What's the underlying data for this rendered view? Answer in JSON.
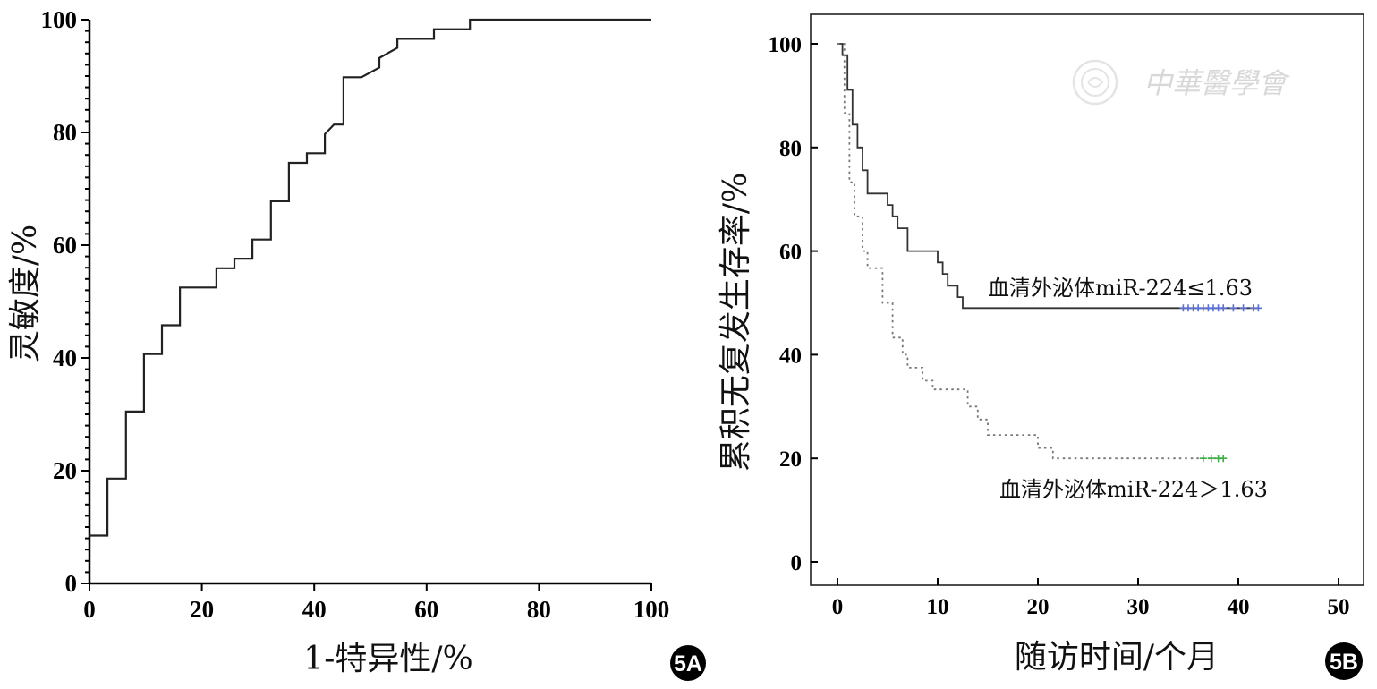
{
  "chart_data": [
    {
      "panel_label": "5A",
      "type": "line",
      "xlabel": "1-特异性/%",
      "ylabel": "灵敏度/%",
      "xlim": [
        0,
        100
      ],
      "ylim": [
        0,
        100
      ],
      "xticks": [
        "0",
        "20",
        "40",
        "60",
        "80",
        "100"
      ],
      "yticks": [
        "0",
        "20",
        "40",
        "60",
        "80",
        "100"
      ],
      "series": [
        {
          "step": true,
          "x": [
            0,
            3.2,
            3.2,
            6.5,
            6.5,
            9.7,
            9.7,
            12.9,
            12.9,
            16.1,
            16.1,
            22.6,
            22.6,
            25.8,
            25.8,
            29.0,
            29.0,
            32.3,
            32.3,
            35.5,
            35.5,
            38.7,
            38.7,
            41.9,
            41.9,
            43.5,
            45.2,
            45.2,
            48.4,
            51.6,
            51.6,
            54.8,
            54.8,
            61.3,
            61.3,
            67.7,
            67.7,
            100
          ],
          "y": [
            8.5,
            8.5,
            18.6,
            18.6,
            30.5,
            30.5,
            40.7,
            40.7,
            45.8,
            45.8,
            52.5,
            52.5,
            55.9,
            55.9,
            57.6,
            57.6,
            61.0,
            61.0,
            67.8,
            67.8,
            74.6,
            74.6,
            76.3,
            76.3,
            79.7,
            81.4,
            81.4,
            89.8,
            89.8,
            91.5,
            93.2,
            95.0,
            96.6,
            96.6,
            98.3,
            98.3,
            100,
            100
          ]
        }
      ]
    },
    {
      "panel_label": "5B",
      "type": "line",
      "xlabel": "随访时间/个月",
      "ylabel": "累积无复发生存率/%",
      "xlim": [
        0,
        50
      ],
      "ylim": [
        0,
        100
      ],
      "xticks": [
        "0",
        "10",
        "20",
        "30",
        "40",
        "50"
      ],
      "yticks": [
        "0",
        "20",
        "40",
        "60",
        "80",
        "100"
      ],
      "series": [
        {
          "label": "血清外泌体miR-224≤1.63",
          "style": "solid",
          "color": "#333333",
          "censor_color": "#5a6fd8",
          "step": true,
          "x": [
            0,
            0.5,
            0.5,
            1.0,
            1.0,
            1.5,
            1.5,
            2.0,
            2.0,
            2.5,
            2.5,
            3.0,
            3.0,
            5.0,
            5.0,
            5.5,
            5.5,
            6.0,
            6.0,
            7.0,
            7.0,
            10.0,
            10.0,
            10.5,
            10.5,
            11.0,
            11.0,
            12.0,
            12.0,
            12.5,
            12.5,
            13.5,
            13.5,
            42
          ],
          "y": [
            100,
            100,
            97.8,
            97.8,
            91.1,
            91.1,
            84.4,
            84.4,
            80.0,
            80.0,
            75.6,
            75.6,
            71.1,
            71.1,
            68.9,
            68.9,
            66.7,
            66.7,
            64.4,
            64.4,
            60.0,
            60.0,
            57.8,
            57.8,
            55.6,
            55.6,
            53.3,
            53.3,
            51.1,
            51.1,
            49.0,
            49.0,
            49.0,
            49.0
          ],
          "censored_x": [
            34.5,
            35.0,
            35.5,
            36.0,
            36.5,
            37.0,
            37.5,
            38.0,
            38.5,
            39.5,
            40.5,
            41.5,
            42.0
          ],
          "censored_y": 49.0
        },
        {
          "label": "血清外泌体miR-224＞1.63",
          "style": "dotted",
          "color": "#666666",
          "censor_color": "#3cb043",
          "step": true,
          "x": [
            0,
            0.7,
            0.7,
            1.2,
            1.2,
            1.7,
            1.7,
            2.5,
            2.5,
            3.0,
            3.0,
            4.5,
            4.5,
            5.5,
            5.5,
            6.5,
            6.5,
            7.0,
            7.0,
            8.5,
            8.5,
            9.5,
            9.5,
            13.0,
            13.0,
            14.0,
            14.0,
            15.0,
            15.0,
            20.0,
            20.0,
            21.5,
            21.5,
            38.5
          ],
          "y": [
            100,
            100,
            86.7,
            86.7,
            73.3,
            73.3,
            66.7,
            66.7,
            60.0,
            60.0,
            56.7,
            56.7,
            50.0,
            50.0,
            43.3,
            43.3,
            40.0,
            40.0,
            37.5,
            37.5,
            35.0,
            35.0,
            33.3,
            33.3,
            30.0,
            30.0,
            27.5,
            27.5,
            24.5,
            24.5,
            22.0,
            22.0,
            20.0,
            20.0
          ],
          "censored_x": [
            36.5,
            37.3,
            38.0,
            38.5
          ],
          "censored_y": 20.0
        }
      ],
      "watermark": "中華醫學會"
    }
  ]
}
